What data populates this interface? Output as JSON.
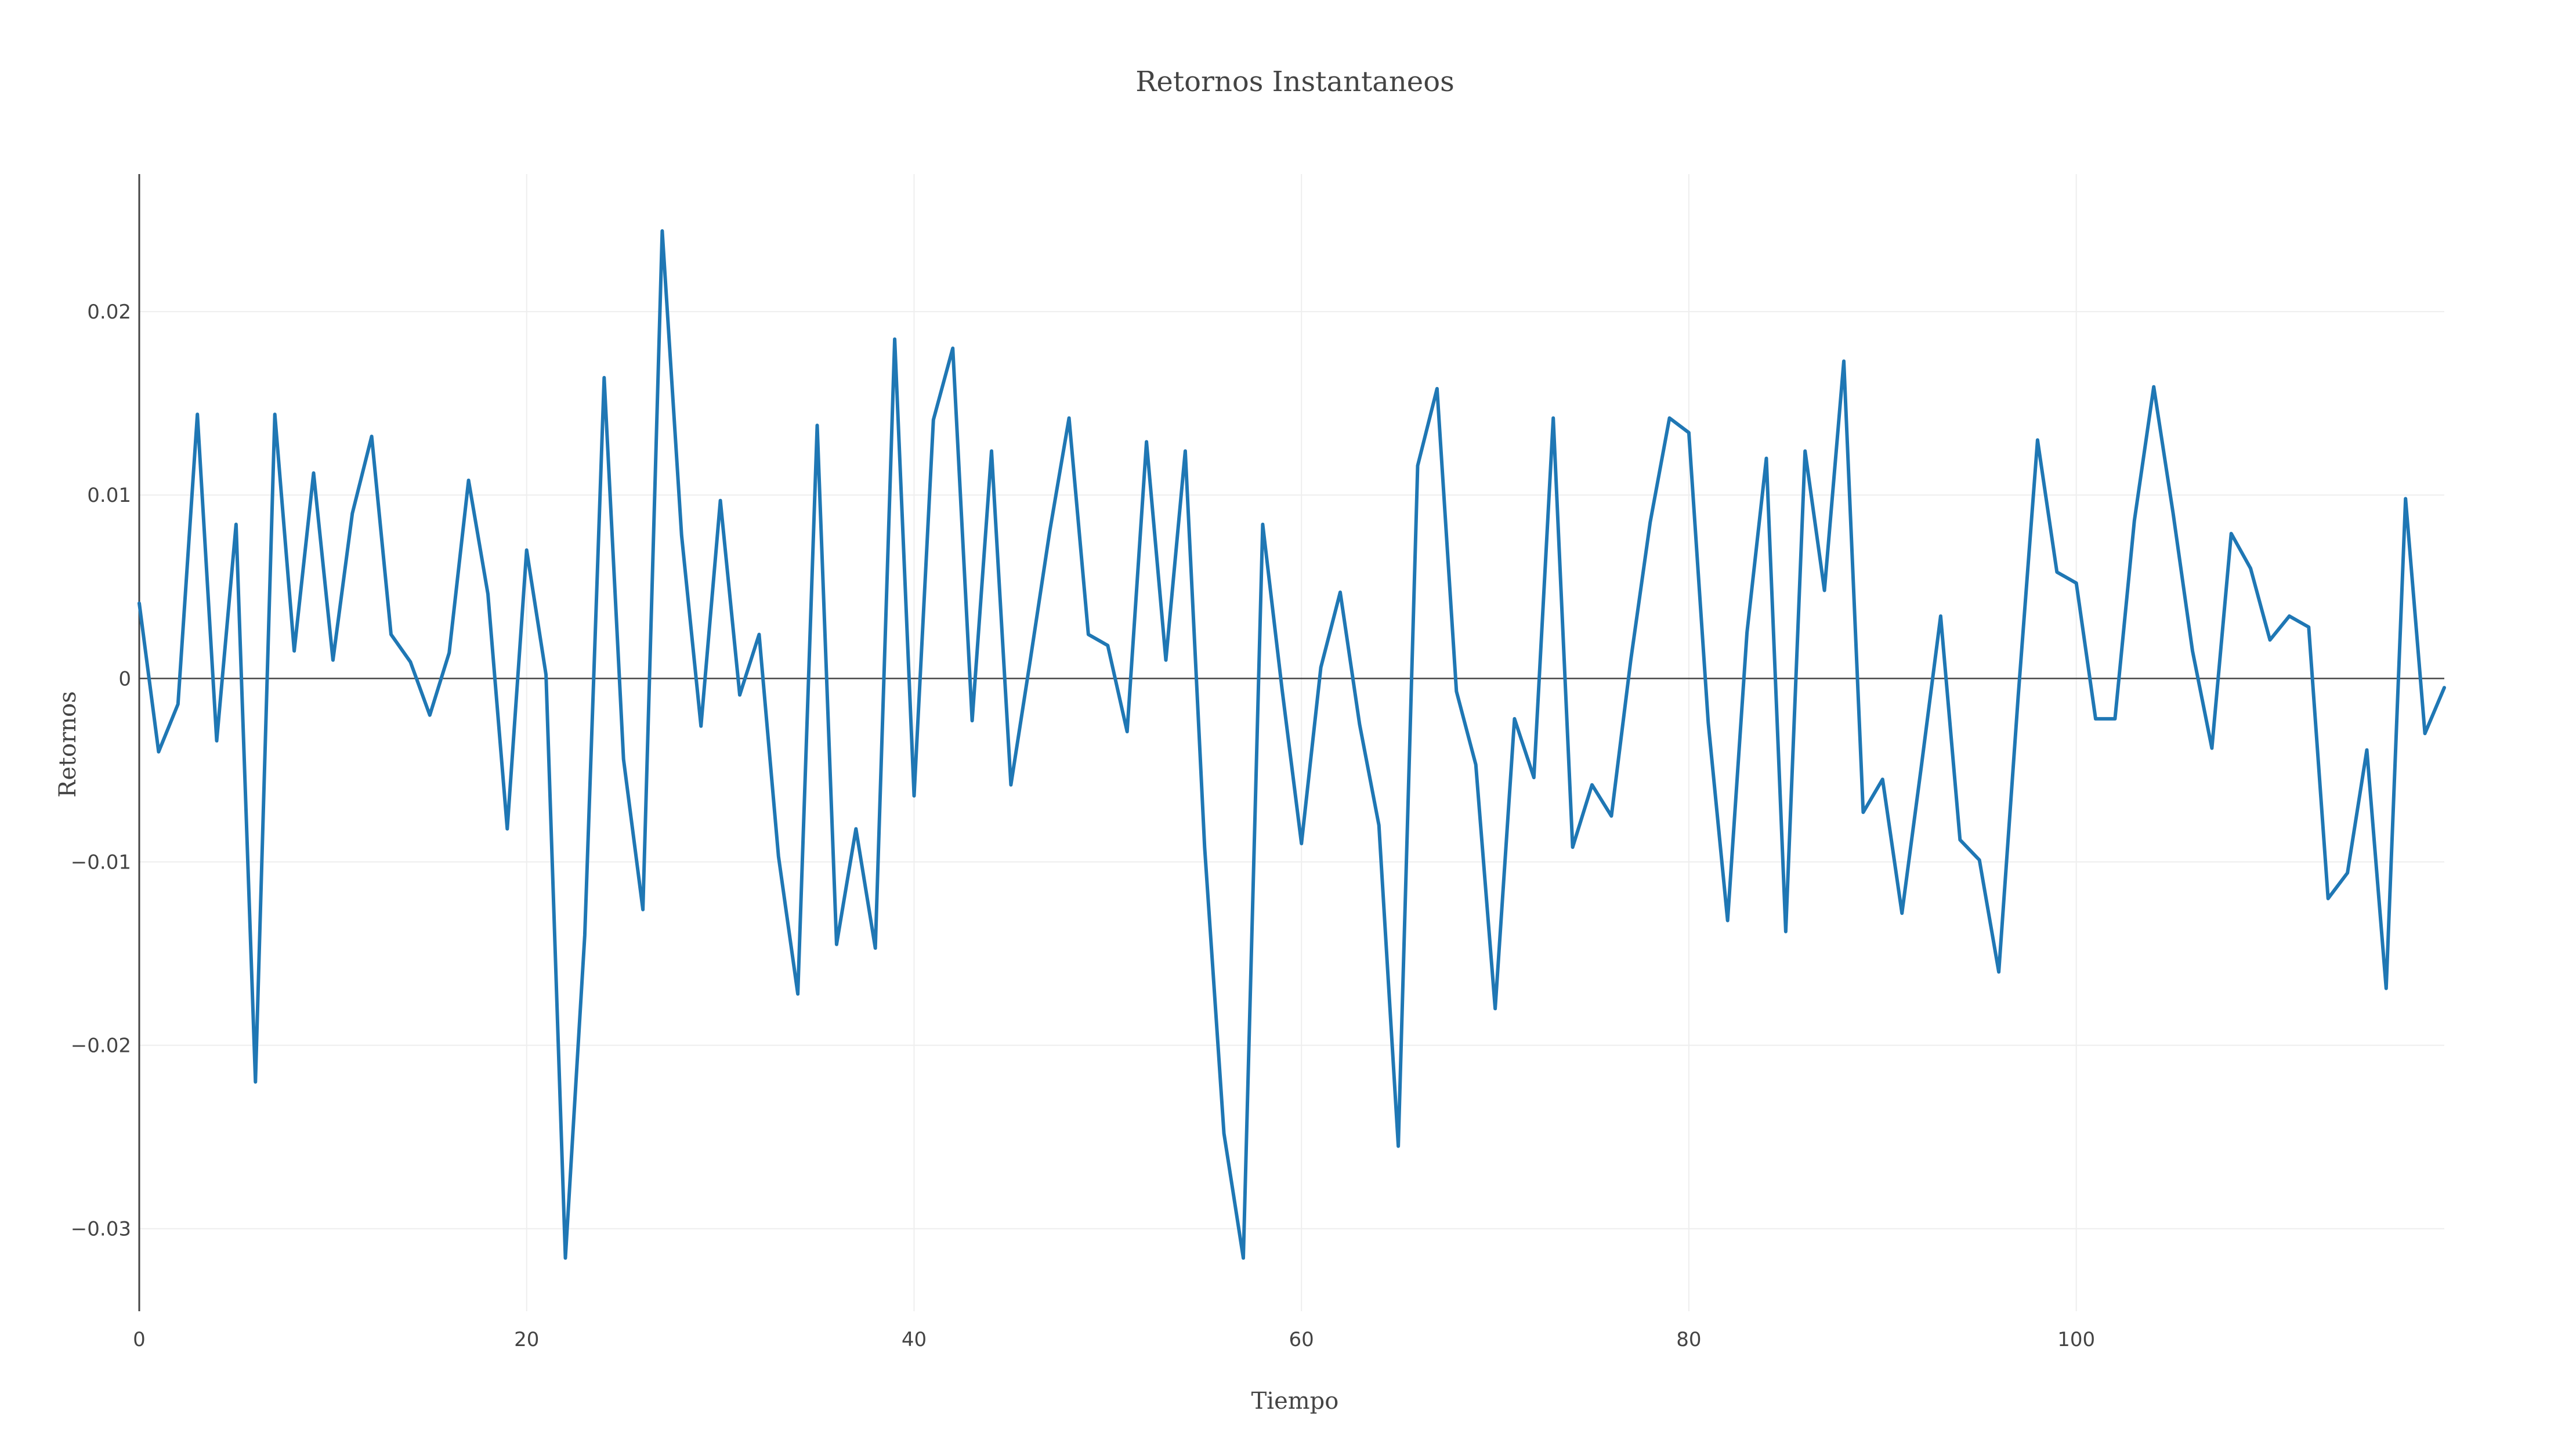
{
  "chart_data": {
    "type": "line",
    "title": "Retornos Instantaneos",
    "xlabel": "Tiempo",
    "ylabel": "Retornos",
    "xlim": [
      0,
      119
    ],
    "ylim": [
      -0.0345,
      0.0275
    ],
    "xticks": [
      0,
      20,
      40,
      60,
      80,
      100
    ],
    "xtick_labels": [
      "0",
      "20",
      "40",
      "60",
      "80",
      "100"
    ],
    "yticks": [
      -0.03,
      -0.02,
      -0.01,
      0,
      0.01,
      0.02
    ],
    "ytick_labels": [
      "−0.03",
      "−0.02",
      "−0.01",
      "0",
      "0.01",
      "0.02"
    ],
    "grid": true,
    "zero_line": true,
    "line_color": "#1f77b4",
    "series": [
      {
        "x": [
          0,
          1,
          2,
          3,
          4,
          5,
          6,
          7,
          8,
          9,
          10,
          11,
          12,
          13,
          14,
          15,
          16,
          17,
          18,
          19,
          20,
          21,
          22,
          23,
          24,
          25,
          26,
          27,
          28,
          29,
          30,
          31,
          32,
          33,
          34,
          35,
          36,
          37,
          38,
          39,
          40,
          41,
          42,
          43,
          44,
          45,
          46,
          47,
          48,
          49,
          50,
          51,
          52,
          53,
          54,
          55,
          56,
          57,
          58,
          59,
          60,
          61,
          62,
          63,
          64,
          65,
          66,
          67,
          68,
          69,
          70,
          71,
          72,
          73,
          74,
          75,
          76,
          77,
          78,
          79,
          80,
          81,
          82,
          83,
          84,
          85,
          86,
          87,
          88,
          89,
          90,
          91,
          92,
          93,
          94,
          95,
          96,
          97,
          98,
          99,
          100,
          101,
          102,
          103,
          104,
          105,
          106,
          107,
          108,
          109,
          110,
          111,
          112,
          113,
          114,
          115,
          116,
          117,
          118,
          119
        ],
        "y": [
          0.0041,
          -0.004,
          -0.0014,
          0.0144,
          -0.0034,
          0.0084,
          -0.022,
          0.0144,
          0.0015,
          0.0112,
          0.001,
          0.009,
          0.0132,
          0.0024,
          0.0009,
          -0.002,
          0.0014,
          0.0108,
          0.0046,
          -0.0082,
          0.007,
          0.0002,
          -0.0316,
          -0.014,
          0.0164,
          -0.0044,
          -0.0126,
          0.0244,
          0.0078,
          -0.0026,
          0.0097,
          -0.0009,
          0.0024,
          -0.0097,
          -0.0172,
          0.0138,
          -0.0145,
          -0.0082,
          -0.0147,
          0.0185,
          -0.0064,
          0.0141,
          0.018,
          -0.0023,
          0.0124,
          -0.0058,
          0.001,
          0.008,
          0.0142,
          0.0024,
          0.0018,
          -0.0029,
          0.0129,
          0.001,
          0.0124,
          -0.0092,
          -0.0248,
          -0.0316,
          0.0084,
          -0.0006,
          -0.009,
          0.0006,
          0.0047,
          -0.0025,
          -0.008,
          -0.0255,
          0.0116,
          0.0158,
          -0.0007,
          -0.0047,
          -0.018,
          -0.0022,
          -0.0054,
          0.0142,
          -0.0092,
          -0.0058,
          -0.0075,
          0.001,
          0.0085,
          0.0142,
          0.0134,
          -0.0024,
          -0.0132,
          0.0025,
          0.012,
          -0.0138,
          0.0124,
          0.0048,
          0.0173,
          -0.0073,
          -0.0055,
          -0.0128,
          -0.0048,
          0.0034,
          -0.0088,
          -0.0099,
          -0.016,
          -0.001,
          0.013,
          0.0058,
          0.0052,
          -0.0022,
          -0.0022,
          0.0086,
          0.0159,
          0.009,
          0.0015,
          -0.0038,
          0.0079,
          0.006,
          0.0021,
          0.0034,
          0.0028,
          -0.012,
          -0.0106,
          -0.0039,
          -0.0169,
          0.0098,
          -0.003,
          -0.0005
        ]
      }
    ]
  }
}
